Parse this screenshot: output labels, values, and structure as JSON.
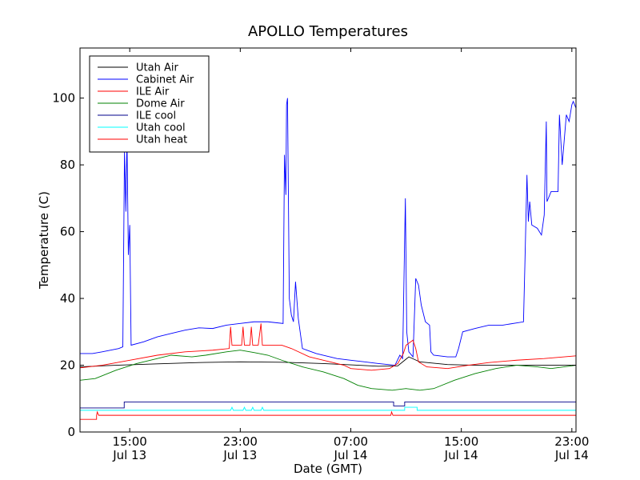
{
  "chart_data": {
    "type": "line",
    "title": "APOLLO Temperatures",
    "xlabel": "Date (GMT)",
    "ylabel": "Temperature (C)",
    "x_unit": "hours since Jul 13 00:00 GMT",
    "xlim": [
      11.4,
      47.3
    ],
    "ylim": [
      0,
      115
    ],
    "y_ticks": [
      0,
      20,
      40,
      60,
      80,
      100
    ],
    "x_ticks": [
      {
        "x": 15,
        "line1": "15:00",
        "line2": "Jul 13"
      },
      {
        "x": 23,
        "line1": "23:00",
        "line2": "Jul 13"
      },
      {
        "x": 31,
        "line1": "07:00",
        "line2": "Jul 14"
      },
      {
        "x": 39,
        "line1": "15:00",
        "line2": "Jul 14"
      },
      {
        "x": 47,
        "line1": "23:00",
        "line2": "Jul 14"
      }
    ],
    "legend_position": "top-left",
    "grid": false,
    "series": [
      {
        "name": "Utah Air",
        "color": "#000000",
        "points": [
          [
            11.4,
            19.5
          ],
          [
            14,
            20
          ],
          [
            17,
            20.4
          ],
          [
            20,
            20.8
          ],
          [
            23,
            21
          ],
          [
            26,
            20.9
          ],
          [
            29,
            20.5
          ],
          [
            31,
            20.1
          ],
          [
            33,
            19.7
          ],
          [
            34.4,
            19.8
          ],
          [
            35.2,
            22.5
          ],
          [
            36,
            21
          ],
          [
            38,
            20.2
          ],
          [
            40,
            20
          ],
          [
            43,
            20
          ],
          [
            47.3,
            20
          ]
        ]
      },
      {
        "name": "Cabinet Air",
        "color": "#0000ff",
        "points": [
          [
            11.4,
            23.5
          ],
          [
            12.3,
            23.5
          ],
          [
            13,
            24
          ],
          [
            14.2,
            25
          ],
          [
            14.5,
            25.5
          ],
          [
            14.62,
            84
          ],
          [
            14.72,
            66
          ],
          [
            14.8,
            88
          ],
          [
            14.9,
            53
          ],
          [
            15.0,
            62
          ],
          [
            15.1,
            26
          ],
          [
            16,
            27
          ],
          [
            17,
            28.5
          ],
          [
            18,
            29.5
          ],
          [
            19,
            30.5
          ],
          [
            20,
            31.2
          ],
          [
            21,
            31
          ],
          [
            22,
            32
          ],
          [
            23,
            32.5
          ],
          [
            24,
            33
          ],
          [
            25,
            33
          ],
          [
            26.1,
            32.5
          ],
          [
            26.2,
            83
          ],
          [
            26.3,
            71
          ],
          [
            26.35,
            98
          ],
          [
            26.42,
            100
          ],
          [
            26.55,
            40
          ],
          [
            26.7,
            35
          ],
          [
            26.85,
            33
          ],
          [
            27,
            45
          ],
          [
            27.2,
            34
          ],
          [
            27.5,
            25
          ],
          [
            28.5,
            23.5
          ],
          [
            30,
            22
          ],
          [
            31,
            21.5
          ],
          [
            32,
            21
          ],
          [
            33,
            20.5
          ],
          [
            34.2,
            20
          ],
          [
            34.55,
            23
          ],
          [
            34.75,
            22
          ],
          [
            34.95,
            70
          ],
          [
            35.05,
            30
          ],
          [
            35.2,
            24
          ],
          [
            35.5,
            22.5
          ],
          [
            35.7,
            46
          ],
          [
            35.9,
            44
          ],
          [
            36.1,
            38
          ],
          [
            36.4,
            33
          ],
          [
            36.7,
            32
          ],
          [
            36.8,
            24
          ],
          [
            37,
            23
          ],
          [
            38,
            22.5
          ],
          [
            38.6,
            22.5
          ],
          [
            38.8,
            25
          ],
          [
            39.1,
            30
          ],
          [
            40,
            31
          ],
          [
            41,
            32
          ],
          [
            42,
            32
          ],
          [
            43.5,
            33
          ],
          [
            43.6,
            50
          ],
          [
            43.75,
            77
          ],
          [
            43.85,
            63
          ],
          [
            43.95,
            69
          ],
          [
            44.1,
            62
          ],
          [
            44.5,
            61
          ],
          [
            44.8,
            59
          ],
          [
            45.0,
            65
          ],
          [
            45.15,
            93
          ],
          [
            45.2,
            69
          ],
          [
            45.5,
            72
          ],
          [
            46,
            72
          ],
          [
            46.1,
            95
          ],
          [
            46.3,
            80
          ],
          [
            46.6,
            95
          ],
          [
            46.8,
            93
          ],
          [
            47,
            98
          ],
          [
            47.1,
            99
          ],
          [
            47.3,
            97
          ]
        ]
      },
      {
        "name": "ILE Air",
        "color": "#ff0000",
        "points": [
          [
            11.4,
            19.2
          ],
          [
            13,
            20
          ],
          [
            15,
            21.5
          ],
          [
            17,
            23
          ],
          [
            19,
            24
          ],
          [
            21,
            24.5
          ],
          [
            22.2,
            25
          ],
          [
            22.3,
            31.5
          ],
          [
            22.4,
            26
          ],
          [
            23.1,
            26
          ],
          [
            23.2,
            31.5
          ],
          [
            23.3,
            26
          ],
          [
            23.7,
            26
          ],
          [
            23.8,
            31.5
          ],
          [
            23.9,
            26
          ],
          [
            24.3,
            26
          ],
          [
            24.5,
            32.5
          ],
          [
            24.6,
            26
          ],
          [
            26,
            26
          ],
          [
            26.7,
            25
          ],
          [
            28,
            22.5
          ],
          [
            29.5,
            21
          ],
          [
            30.5,
            20
          ],
          [
            31,
            19
          ],
          [
            32.5,
            18.5
          ],
          [
            33.8,
            19
          ],
          [
            34.4,
            20.5
          ],
          [
            34.8,
            23.5
          ],
          [
            35.0,
            26
          ],
          [
            35.5,
            27.5
          ],
          [
            35.7,
            25
          ],
          [
            35.9,
            21
          ],
          [
            36.5,
            19.5
          ],
          [
            38,
            19
          ],
          [
            39.5,
            20
          ],
          [
            41,
            20.8
          ],
          [
            43,
            21.5
          ],
          [
            45,
            22
          ],
          [
            47.3,
            22.8
          ]
        ]
      },
      {
        "name": "Dome Air",
        "color": "#008000",
        "points": [
          [
            11.4,
            15.5
          ],
          [
            12.5,
            16
          ],
          [
            14,
            18.5
          ],
          [
            15.5,
            20.5
          ],
          [
            17,
            22
          ],
          [
            18,
            23
          ],
          [
            19.5,
            22.5
          ],
          [
            20.5,
            23
          ],
          [
            22,
            24
          ],
          [
            23,
            24.5
          ],
          [
            24,
            23.8
          ],
          [
            25,
            23
          ],
          [
            26,
            21.5
          ],
          [
            27.5,
            19.5
          ],
          [
            29,
            18
          ],
          [
            30.5,
            16
          ],
          [
            31.5,
            14
          ],
          [
            32.5,
            13
          ],
          [
            34,
            12.5
          ],
          [
            35,
            13
          ],
          [
            36,
            12.5
          ],
          [
            37,
            13
          ],
          [
            38.5,
            15.5
          ],
          [
            40,
            17.5
          ],
          [
            41.5,
            19
          ],
          [
            43,
            20
          ],
          [
            44.5,
            19.5
          ],
          [
            45.5,
            19
          ],
          [
            47.3,
            20
          ]
        ]
      },
      {
        "name": "ILE cool",
        "color": "#00008b",
        "points": [
          [
            11.4,
            7.2
          ],
          [
            14.6,
            7.2
          ],
          [
            14.6,
            9
          ],
          [
            34.1,
            9
          ],
          [
            34.1,
            7.8
          ],
          [
            34.9,
            7.8
          ],
          [
            34.9,
            9
          ],
          [
            47.3,
            9
          ]
        ]
      },
      {
        "name": "Utah cool",
        "color": "#00ffff",
        "points": [
          [
            11.4,
            6.5
          ],
          [
            22.3,
            6.5
          ],
          [
            22.4,
            7.4
          ],
          [
            22.5,
            6.5
          ],
          [
            23.2,
            6.5
          ],
          [
            23.3,
            7.4
          ],
          [
            23.4,
            6.5
          ],
          [
            23.8,
            6.5
          ],
          [
            23.9,
            7.4
          ],
          [
            24.0,
            6.5
          ],
          [
            24.5,
            6.5
          ],
          [
            24.6,
            7.4
          ],
          [
            24.7,
            6.5
          ],
          [
            34.9,
            6.5
          ],
          [
            34.9,
            7.4
          ],
          [
            35.8,
            7.4
          ],
          [
            35.8,
            6.5
          ],
          [
            47.3,
            6.5
          ]
        ]
      },
      {
        "name": "Utah heat",
        "color": "#ff0000",
        "points": [
          [
            11.4,
            3.8
          ],
          [
            12.6,
            3.8
          ],
          [
            12.6,
            5
          ],
          [
            12.65,
            6
          ],
          [
            12.75,
            5
          ],
          [
            33.9,
            5
          ],
          [
            33.95,
            6
          ],
          [
            34.05,
            5
          ],
          [
            47.3,
            5
          ]
        ]
      }
    ]
  }
}
